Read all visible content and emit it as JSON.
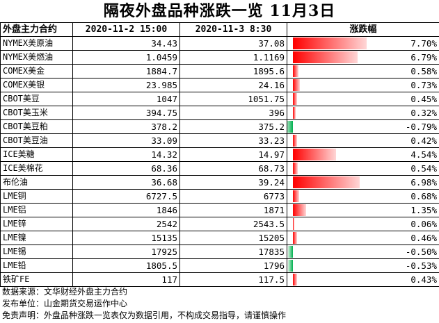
{
  "title": "隔夜外盘品种涨跌一览 11月3日",
  "columns": [
    "外盘主力合约",
    "2020-11-2 15:00",
    "2020-11-3 8:30",
    "涨跌幅"
  ],
  "rows": [
    {
      "name": "NYMEX美原油",
      "prev": "34.43",
      "curr": "37.08",
      "change": "7.70%",
      "pct": 7.7
    },
    {
      "name": "NYMEX美燃油",
      "prev": "1.0459",
      "curr": "1.1169",
      "change": "6.79%",
      "pct": 6.79
    },
    {
      "name": "COMEX美金",
      "prev": "1884.7",
      "curr": "1895.6",
      "change": "0.58%",
      "pct": 0.58
    },
    {
      "name": "COMEX美银",
      "prev": "23.985",
      "curr": "24.16",
      "change": "0.73%",
      "pct": 0.73
    },
    {
      "name": "CBOT美豆",
      "prev": "1047",
      "curr": "1051.75",
      "change": "0.45%",
      "pct": 0.45
    },
    {
      "name": "CBOT美玉米",
      "prev": "394.75",
      "curr": "396",
      "change": "0.32%",
      "pct": 0.32
    },
    {
      "name": "CBOT美豆粕",
      "prev": "378.2",
      "curr": "375.2",
      "change": "-0.79%",
      "pct": -0.79
    },
    {
      "name": "CBOT美豆油",
      "prev": "33.09",
      "curr": "33.23",
      "change": "0.42%",
      "pct": 0.42
    },
    {
      "name": "ICE美糖",
      "prev": "14.32",
      "curr": "14.97",
      "change": "4.54%",
      "pct": 4.54
    },
    {
      "name": "ICE美棉花",
      "prev": "68.36",
      "curr": "68.73",
      "change": "0.54%",
      "pct": 0.54
    },
    {
      "name": "布伦油",
      "prev": "36.68",
      "curr": "39.24",
      "change": "6.98%",
      "pct": 6.98
    },
    {
      "name": "LME铜",
      "prev": "6727.5",
      "curr": "6773",
      "change": "0.68%",
      "pct": 0.68
    },
    {
      "name": "LME铝",
      "prev": "1846",
      "curr": "1871",
      "change": "1.35%",
      "pct": 1.35
    },
    {
      "name": "LME锌",
      "prev": "2542",
      "curr": "2543.5",
      "change": "0.06%",
      "pct": 0.06
    },
    {
      "name": "LME镍",
      "prev": "15135",
      "curr": "15205",
      "change": "0.46%",
      "pct": 0.46
    },
    {
      "name": "LME锡",
      "prev": "17925",
      "curr": "17835",
      "change": "-0.50%",
      "pct": -0.5
    },
    {
      "name": "LME铅",
      "prev": "1805.5",
      "curr": "1796",
      "change": "-0.53%",
      "pct": -0.53
    },
    {
      "name": "铁矿FE",
      "prev": "117",
      "curr": "117.5",
      "change": "0.43%",
      "pct": 0.43
    }
  ],
  "notes": [
    "数据来源：文华财经外盘主力合约",
    "发布单位：山金期货交易运作中心",
    "免责声明：外盘品种涨跌一览表仅为数据引用，不构成交易指导，请谨慎操作"
  ],
  "colors": {
    "positive": "#ff0000",
    "negative": "#00b050"
  }
}
